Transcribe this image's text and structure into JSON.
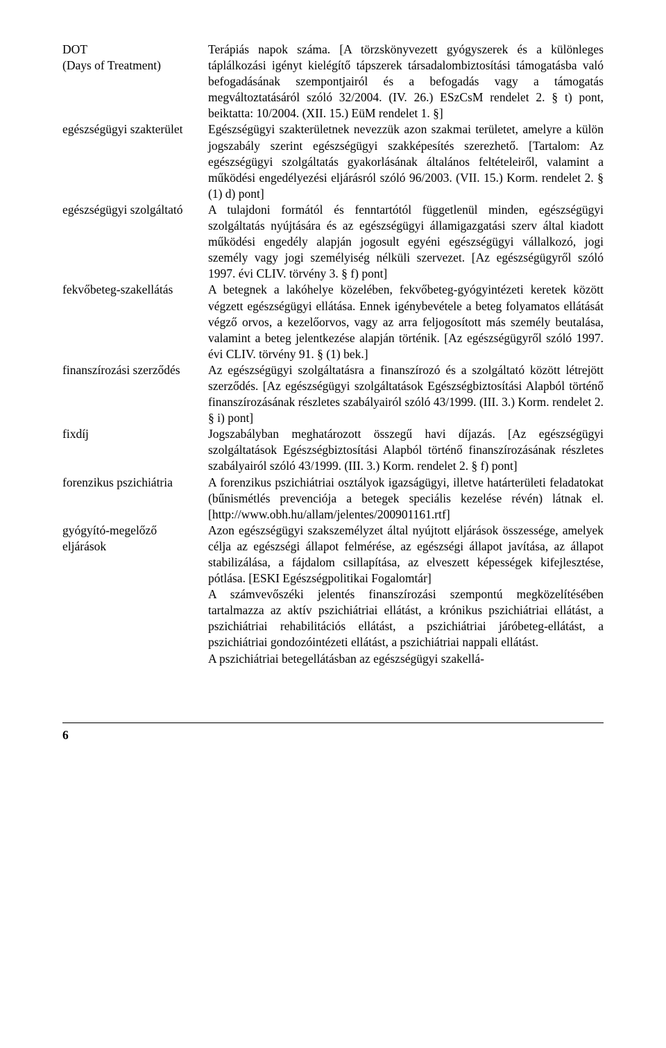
{
  "entries": [
    {
      "term": "DOT\n(Days of Treatment)",
      "def": "Terápiás napok száma. [A törzskönyvezett gyógyszerek és a különleges táplálkozási igényt kielégítő tápszerek társadalombiztosítási támogatásba való befogadásának szempontjairól és a befogadás vagy a támogatás megváltoztatásáról szóló 32/2004. (IV. 26.) ESzCsM rendelet 2. § t) pont, beiktatta: 10/2004. (XII. 15.) EüM rendelet 1. §]"
    },
    {
      "term": "egészségügyi szakterület",
      "def": "Egészségügyi szakterületnek nevezzük azon szakmai területet, amelyre a külön jogszabály szerint egészségügyi szakképesítés szerezhető. [Tartalom: Az egészségügyi szolgáltatás gyakorlásának általános feltételeiről, valamint a működési engedélyezési eljárásról szóló 96/2003. (VII. 15.) Korm. rendelet 2. § (1) d) pont]"
    },
    {
      "term": "egészségügyi szolgáltató",
      "def": "A tulajdoni formától és fenntartótól függetlenül minden, egészségügyi szolgáltatás nyújtására és az egészségügyi államigazgatási szerv által kiadott működési engedély alapján jogosult egyéni egészségügyi vállalkozó, jogi személy vagy jogi személyiség nélküli szervezet. [Az egészségügyről szóló 1997. évi CLIV. törvény 3. § f) pont]"
    },
    {
      "term": "fekvőbeteg-szakellátás",
      "def": "A betegnek a lakóhelye közelében, fekvőbeteg-gyógyintézeti keretek között végzett egészségügyi ellátása. Ennek igénybevétele a beteg folyamatos ellátását végző orvos, a kezelőorvos, vagy az arra feljogosított más személy beutalása, valamint a beteg jelentkezése alapján történik. [Az egészségügyről szóló 1997. évi CLIV. törvény 91. § (1) bek.]"
    },
    {
      "term": "finanszírozási szerződés",
      "def": "Az egészségügyi szolgáltatásra a finanszírozó és a szolgáltató között létrejött szerződés. [Az egészségügyi szolgáltatások Egészségbiztosítási Alapból történő finanszírozásának részletes szabályairól szóló 43/1999. (III. 3.) Korm. rendelet 2. § i) pont]"
    },
    {
      "term": "fixdíj",
      "def": "Jogszabályban meghatározott összegű havi díjazás. [Az egészségügyi szolgáltatások Egészségbiztosítási Alapból történő finanszírozásának részletes szabályairól szóló 43/1999. (III. 3.) Korm. rendelet 2. § f) pont]"
    },
    {
      "term": "forenzikus pszichiátria",
      "def": "A forenzikus pszichiátriai osztályok igazságügyi, illetve határterületi feladatokat (bűnismétlés prevenciója a betegek speciális kezelése révén) látnak el. [http://www.obh.hu/allam/jelentes/200901161.rtf]"
    },
    {
      "term": "gyógyító-megelőző eljárások",
      "def": "Azon egészségügyi szakszemélyzet által nyújtott eljárások összessége, amelyek célja az egészségi állapot felmérése, az egészségi állapot javítása, az állapot stabilizálása, a fájdalom csillapítása, az elveszett képességek kifejlesztése, pótlása. [ESKI Egészségpolitikai Fogalomtár]",
      "extra": [
        "A számvevőszéki jelentés finanszírozási szempontú megközelítésében tartalmazza az aktív pszichiátriai ellátást, a krónikus pszichiátriai ellátást, a pszichiátriai rehabilitációs ellátást, a pszichiátriai járóbeteg-ellátást, a pszichiátriai gondozóintézeti ellátást, a pszichiátriai nappali ellátást.",
        "A pszichiátriai betegellátásban az egészségügyi szakellá-"
      ]
    }
  ],
  "page_number": "6"
}
